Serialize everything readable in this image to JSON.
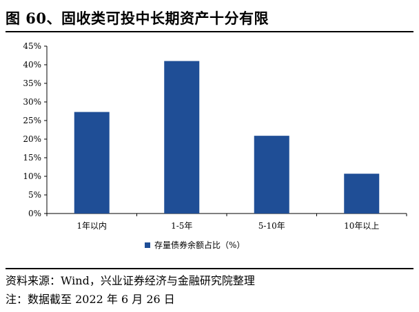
{
  "title": "图 60、固收类可投中长期资产十分有限",
  "chart_data": {
    "type": "bar",
    "categories": [
      "1年以内",
      "1-5年",
      "5-10年",
      "10年以上"
    ],
    "series": [
      {
        "name": "存量债券余额占比（%）",
        "values": [
          27.3,
          41.0,
          20.9,
          10.7
        ],
        "color": "#1F4E96"
      }
    ],
    "yticks": [
      "0%",
      "5%",
      "10%",
      "15%",
      "20%",
      "25%",
      "30%",
      "35%",
      "40%",
      "45%"
    ],
    "ylim": [
      0,
      45
    ],
    "ytick_step": 5,
    "grid": false,
    "legend_position": "bottom-center"
  },
  "notes": {
    "source": "资料来源：Wind，兴业证券经济与金融研究院整理",
    "date": "注：数据截至 2022 年 6 月 26 日"
  }
}
